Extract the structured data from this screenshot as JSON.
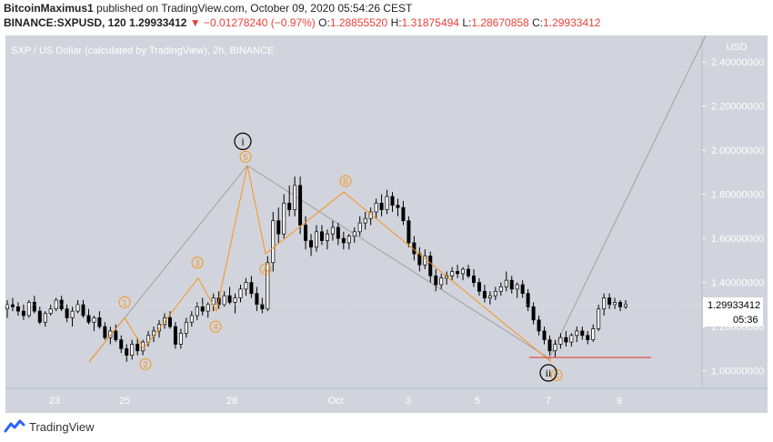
{
  "header": {
    "author": "BitcoinMaximus1",
    "published_text": " published on TradingView.com, October 09, 2020 05:54:26 CEST",
    "symbol": "BINANCE:SXPUSD, 120",
    "last_price": "1.29933412",
    "change_arrow": "▼",
    "change": "−0.01278240 (−0.97%)",
    "o_label": "O:",
    "o_value": "1.28855520",
    "h_label": "H:",
    "h_value": "1.31875494",
    "l_label": "L:",
    "l_value": "1.28670858",
    "c_label": "C:",
    "c_value": "1.29933412"
  },
  "chart_data": {
    "type": "candlestick",
    "title": "SXP / US Dollar (calculated by TradingView), 2h, BINANCE",
    "currency_label": "USD",
    "x_ticks": [
      "23",
      "25",
      "28",
      "Oct",
      "3",
      "5",
      "7",
      "9"
    ],
    "y_ticks": [
      "1.00000000",
      "1.20000000",
      "1.40000000",
      "1.60000000",
      "1.80000000",
      "2.00000000",
      "2.20000000",
      "2.40000000"
    ],
    "ylim": [
      0.92,
      2.52
    ],
    "price_label": "1.29933412",
    "countdown_label": "05:36",
    "grid": false,
    "background": "#d1d4dc",
    "colors": {
      "up": "#ffffff",
      "down": "#000000",
      "wave": "#f7931a",
      "support": "#e8403a",
      "projection": "#a0a0a0"
    },
    "support_level": 1.06,
    "wave_points": [
      {
        "label": "1",
        "date": "Sep 25",
        "price": 1.24
      },
      {
        "label": "2",
        "date": "Sep 25",
        "price": 1.1
      },
      {
        "label": "3",
        "date": "Sep 27",
        "price": 1.42
      },
      {
        "label": "4",
        "date": "Sep 27",
        "price": 1.27
      },
      {
        "label": "5",
        "date": "Sep 28",
        "price": 1.93
      },
      {
        "label": "A",
        "date": "Sep 29",
        "price": 1.53
      },
      {
        "label": "B",
        "date": "Oct 1",
        "price": 1.81
      },
      {
        "label": "C",
        "date": "Oct 7",
        "price": 1.04
      }
    ],
    "major_labels": [
      {
        "label": "i",
        "date": "Sep 28",
        "price": 2.04
      },
      {
        "label": "ii",
        "date": "Oct 7",
        "price": 0.99
      }
    ],
    "candles": [
      [
        1.28,
        1.32,
        1.24,
        1.3
      ],
      [
        1.3,
        1.33,
        1.27,
        1.29
      ],
      [
        1.29,
        1.31,
        1.25,
        1.27
      ],
      [
        1.27,
        1.3,
        1.23,
        1.25
      ],
      [
        1.25,
        1.32,
        1.24,
        1.31
      ],
      [
        1.31,
        1.34,
        1.26,
        1.27
      ],
      [
        1.27,
        1.29,
        1.21,
        1.22
      ],
      [
        1.22,
        1.27,
        1.2,
        1.26
      ],
      [
        1.26,
        1.3,
        1.25,
        1.28
      ],
      [
        1.28,
        1.33,
        1.27,
        1.32
      ],
      [
        1.32,
        1.34,
        1.27,
        1.28
      ],
      [
        1.28,
        1.3,
        1.22,
        1.24
      ],
      [
        1.24,
        1.29,
        1.2,
        1.27
      ],
      [
        1.27,
        1.32,
        1.26,
        1.3
      ],
      [
        1.3,
        1.32,
        1.24,
        1.25
      ],
      [
        1.25,
        1.28,
        1.21,
        1.22
      ],
      [
        1.22,
        1.25,
        1.18,
        1.24
      ],
      [
        1.24,
        1.27,
        1.19,
        1.2
      ],
      [
        1.2,
        1.22,
        1.14,
        1.15
      ],
      [
        1.15,
        1.2,
        1.12,
        1.18
      ],
      [
        1.18,
        1.21,
        1.13,
        1.14
      ],
      [
        1.14,
        1.16,
        1.08,
        1.1
      ],
      [
        1.1,
        1.12,
        1.04,
        1.07
      ],
      [
        1.07,
        1.14,
        1.05,
        1.12
      ],
      [
        1.12,
        1.15,
        1.07,
        1.09
      ],
      [
        1.09,
        1.14,
        1.07,
        1.13
      ],
      [
        1.13,
        1.18,
        1.11,
        1.16
      ],
      [
        1.16,
        1.2,
        1.13,
        1.18
      ],
      [
        1.18,
        1.23,
        1.15,
        1.21
      ],
      [
        1.21,
        1.26,
        1.19,
        1.24
      ],
      [
        1.24,
        1.27,
        1.19,
        1.2
      ],
      [
        1.2,
        1.22,
        1.1,
        1.12
      ],
      [
        1.12,
        1.19,
        1.1,
        1.17
      ],
      [
        1.17,
        1.24,
        1.15,
        1.22
      ],
      [
        1.22,
        1.27,
        1.2,
        1.25
      ],
      [
        1.25,
        1.31,
        1.23,
        1.29
      ],
      [
        1.29,
        1.33,
        1.25,
        1.27
      ],
      [
        1.27,
        1.31,
        1.24,
        1.3
      ],
      [
        1.3,
        1.35,
        1.27,
        1.33
      ],
      [
        1.33,
        1.36,
        1.28,
        1.3
      ],
      [
        1.3,
        1.36,
        1.29,
        1.34
      ],
      [
        1.34,
        1.38,
        1.3,
        1.31
      ],
      [
        1.31,
        1.35,
        1.26,
        1.33
      ],
      [
        1.33,
        1.39,
        1.31,
        1.37
      ],
      [
        1.37,
        1.42,
        1.34,
        1.4
      ],
      [
        1.4,
        1.43,
        1.33,
        1.35
      ],
      [
        1.35,
        1.38,
        1.27,
        1.3
      ],
      [
        1.3,
        1.33,
        1.26,
        1.28
      ],
      [
        1.28,
        1.52,
        1.27,
        1.49
      ],
      [
        1.49,
        1.72,
        1.45,
        1.68
      ],
      [
        1.68,
        1.74,
        1.58,
        1.62
      ],
      [
        1.62,
        1.8,
        1.6,
        1.76
      ],
      [
        1.76,
        1.84,
        1.7,
        1.73
      ],
      [
        1.73,
        1.88,
        1.7,
        1.84
      ],
      [
        1.84,
        1.88,
        1.62,
        1.66
      ],
      [
        1.66,
        1.7,
        1.55,
        1.59
      ],
      [
        1.59,
        1.62,
        1.52,
        1.56
      ],
      [
        1.56,
        1.66,
        1.54,
        1.63
      ],
      [
        1.63,
        1.66,
        1.57,
        1.59
      ],
      [
        1.59,
        1.64,
        1.55,
        1.62
      ],
      [
        1.62,
        1.68,
        1.59,
        1.65
      ],
      [
        1.65,
        1.67,
        1.57,
        1.6
      ],
      [
        1.6,
        1.63,
        1.55,
        1.58
      ],
      [
        1.58,
        1.62,
        1.55,
        1.61
      ],
      [
        1.61,
        1.65,
        1.58,
        1.63
      ],
      [
        1.63,
        1.7,
        1.61,
        1.67
      ],
      [
        1.67,
        1.72,
        1.64,
        1.69
      ],
      [
        1.69,
        1.74,
        1.66,
        1.72
      ],
      [
        1.72,
        1.78,
        1.69,
        1.76
      ],
      [
        1.76,
        1.8,
        1.7,
        1.73
      ],
      [
        1.73,
        1.82,
        1.71,
        1.79
      ],
      [
        1.79,
        1.81,
        1.72,
        1.75
      ],
      [
        1.75,
        1.78,
        1.7,
        1.74
      ],
      [
        1.74,
        1.77,
        1.66,
        1.68
      ],
      [
        1.68,
        1.7,
        1.56,
        1.58
      ],
      [
        1.58,
        1.61,
        1.5,
        1.53
      ],
      [
        1.53,
        1.56,
        1.45,
        1.48
      ],
      [
        1.48,
        1.55,
        1.46,
        1.52
      ],
      [
        1.52,
        1.54,
        1.4,
        1.43
      ],
      [
        1.43,
        1.46,
        1.36,
        1.39
      ],
      [
        1.39,
        1.44,
        1.37,
        1.42
      ],
      [
        1.42,
        1.45,
        1.39,
        1.43
      ],
      [
        1.43,
        1.47,
        1.41,
        1.45
      ],
      [
        1.45,
        1.48,
        1.42,
        1.44
      ],
      [
        1.44,
        1.47,
        1.41,
        1.46
      ],
      [
        1.46,
        1.48,
        1.42,
        1.43
      ],
      [
        1.43,
        1.46,
        1.38,
        1.4
      ],
      [
        1.4,
        1.42,
        1.34,
        1.36
      ],
      [
        1.36,
        1.39,
        1.31,
        1.33
      ],
      [
        1.33,
        1.36,
        1.3,
        1.34
      ],
      [
        1.34,
        1.38,
        1.32,
        1.36
      ],
      [
        1.36,
        1.4,
        1.34,
        1.38
      ],
      [
        1.38,
        1.45,
        1.36,
        1.41
      ],
      [
        1.41,
        1.43,
        1.35,
        1.37
      ],
      [
        1.37,
        1.4,
        1.33,
        1.39
      ],
      [
        1.39,
        1.41,
        1.33,
        1.35
      ],
      [
        1.35,
        1.37,
        1.27,
        1.29
      ],
      [
        1.29,
        1.31,
        1.21,
        1.23
      ],
      [
        1.23,
        1.25,
        1.16,
        1.18
      ],
      [
        1.18,
        1.2,
        1.12,
        1.14
      ],
      [
        1.14,
        1.16,
        1.07,
        1.09
      ],
      [
        1.09,
        1.14,
        1.06,
        1.12
      ],
      [
        1.12,
        1.17,
        1.1,
        1.15
      ],
      [
        1.15,
        1.18,
        1.11,
        1.13
      ],
      [
        1.13,
        1.17,
        1.11,
        1.16
      ],
      [
        1.16,
        1.2,
        1.13,
        1.18
      ],
      [
        1.18,
        1.2,
        1.14,
        1.16
      ],
      [
        1.16,
        1.18,
        1.12,
        1.14
      ],
      [
        1.14,
        1.21,
        1.13,
        1.19
      ],
      [
        1.19,
        1.3,
        1.18,
        1.28
      ],
      [
        1.28,
        1.35,
        1.25,
        1.33
      ],
      [
        1.33,
        1.35,
        1.28,
        1.3
      ],
      [
        1.3,
        1.33,
        1.28,
        1.31
      ],
      [
        1.31,
        1.32,
        1.27,
        1.29
      ],
      [
        1.29,
        1.32,
        1.28,
        1.3
      ]
    ],
    "projection": [
      {
        "date": "Oct 7",
        "price": 1.05
      },
      {
        "date": "Oct 12",
        "price": 2.52
      }
    ]
  },
  "footer": {
    "brand": "TradingView"
  }
}
